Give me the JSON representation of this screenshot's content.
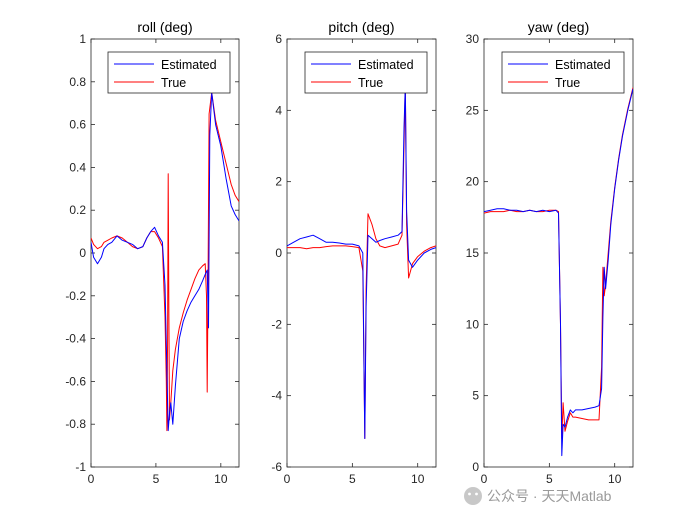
{
  "colors": {
    "estimated": "#0000ff",
    "true": "#ff0000",
    "axes": "#262626",
    "background": "#ffffff"
  },
  "legend": {
    "estimated": "Estimated",
    "true": "True",
    "position": "top-right"
  },
  "watermark": {
    "icon": "wechat-icon",
    "text": "公众号 · 天天Matlab"
  },
  "chart_data": [
    {
      "type": "line",
      "title": "roll (deg)",
      "xlim": [
        0,
        11.4
      ],
      "ylim": [
        -1,
        1
      ],
      "xticks": [
        0,
        5,
        10
      ],
      "yticks": [
        -1,
        -0.8,
        -0.6,
        -0.4,
        -0.2,
        0,
        0.2,
        0.4,
        0.6,
        0.8,
        1
      ],
      "ytick_labels": [
        "-1",
        "-0.8",
        "-0.6",
        "-0.4",
        "-0.2",
        "0",
        "0.2",
        "0.4",
        "0.6",
        "0.8",
        "1"
      ],
      "series": [
        {
          "name": "Estimated",
          "x": [
            0,
            0.2,
            0.5,
            0.8,
            1.0,
            1.3,
            1.6,
            2.0,
            2.4,
            2.8,
            3.2,
            3.6,
            4.0,
            4.3,
            4.6,
            4.9,
            5.2,
            5.5,
            5.7,
            5.85,
            5.95,
            6.05,
            6.15,
            6.3,
            6.5,
            6.8,
            7.1,
            7.4,
            7.7,
            8.0,
            8.3,
            8.6,
            8.8,
            8.95,
            9.05,
            9.15,
            9.3,
            9.6,
            10.0,
            10.4,
            10.8,
            11.1,
            11.4
          ],
          "y": [
            0.05,
            -0.02,
            -0.05,
            -0.02,
            0.02,
            0.04,
            0.05,
            0.08,
            0.06,
            0.05,
            0.04,
            0.02,
            0.03,
            0.07,
            0.1,
            0.12,
            0.08,
            0.05,
            -0.15,
            -0.55,
            -0.83,
            -0.75,
            -0.7,
            -0.8,
            -0.62,
            -0.4,
            -0.32,
            -0.27,
            -0.23,
            -0.2,
            -0.17,
            -0.13,
            -0.1,
            -0.08,
            -0.35,
            0.55,
            0.75,
            0.6,
            0.5,
            0.35,
            0.22,
            0.18,
            0.15
          ]
        },
        {
          "name": "True",
          "x": [
            0,
            0.2,
            0.5,
            0.8,
            1.0,
            1.3,
            1.6,
            2.0,
            2.4,
            2.8,
            3.2,
            3.6,
            4.0,
            4.3,
            4.6,
            4.9,
            5.2,
            5.5,
            5.7,
            5.8,
            5.85,
            5.9,
            5.95,
            6.0,
            6.05,
            6.15,
            6.3,
            6.5,
            6.8,
            7.1,
            7.4,
            7.7,
            8.0,
            8.3,
            8.6,
            8.8,
            8.9,
            8.95,
            9.0,
            9.1,
            9.3,
            9.6,
            10.0,
            10.4,
            10.8,
            11.1,
            11.4
          ],
          "y": [
            0.07,
            0.04,
            0.02,
            0.03,
            0.05,
            0.06,
            0.07,
            0.08,
            0.07,
            0.05,
            0.03,
            0.02,
            0.03,
            0.07,
            0.1,
            0.1,
            0.07,
            0.03,
            -0.3,
            -0.6,
            -0.83,
            -0.4,
            0.37,
            -0.3,
            -0.78,
            -0.7,
            -0.55,
            -0.45,
            -0.35,
            -0.28,
            -0.22,
            -0.17,
            -0.12,
            -0.08,
            -0.06,
            -0.05,
            -0.2,
            -0.65,
            -0.3,
            0.65,
            0.75,
            0.62,
            0.52,
            0.42,
            0.32,
            0.27,
            0.24
          ]
        }
      ]
    },
    {
      "type": "line",
      "title": "pitch (deg)",
      "xlim": [
        0,
        11.4
      ],
      "ylim": [
        -6,
        6
      ],
      "xticks": [
        0,
        5,
        10
      ],
      "yticks": [
        -6,
        -4,
        -2,
        0,
        2,
        4,
        6
      ],
      "ytick_labels": [
        "-6",
        "-4",
        "-2",
        "0",
        "2",
        "4",
        "6"
      ],
      "series": [
        {
          "name": "Estimated",
          "x": [
            0,
            0.5,
            1.0,
            1.5,
            2.0,
            2.5,
            3.0,
            3.5,
            4.0,
            4.5,
            5.0,
            5.5,
            5.8,
            5.9,
            5.95,
            6.05,
            6.2,
            6.5,
            6.8,
            7.1,
            7.5,
            8.0,
            8.5,
            8.8,
            8.95,
            9.05,
            9.15,
            9.3,
            9.6,
            10.0,
            10.5,
            11.0,
            11.4
          ],
          "y": [
            0.2,
            0.3,
            0.4,
            0.45,
            0.5,
            0.4,
            0.3,
            0.3,
            0.28,
            0.25,
            0.25,
            0.2,
            0.0,
            -3.5,
            -5.2,
            -1.5,
            0.5,
            0.4,
            0.3,
            0.35,
            0.4,
            0.45,
            0.5,
            0.6,
            3.5,
            4.7,
            1.2,
            -0.2,
            -0.4,
            -0.2,
            0.0,
            0.1,
            0.15
          ]
        },
        {
          "name": "True",
          "x": [
            0,
            0.5,
            1.0,
            1.5,
            2.0,
            2.5,
            3.0,
            3.5,
            4.0,
            4.5,
            5.0,
            5.5,
            5.8,
            5.9,
            5.95,
            6.05,
            6.2,
            6.5,
            6.8,
            7.1,
            7.5,
            8.0,
            8.5,
            8.8,
            8.95,
            9.05,
            9.15,
            9.3,
            9.6,
            10.0,
            10.5,
            11.0,
            11.4
          ],
          "y": [
            0.15,
            0.15,
            0.15,
            0.12,
            0.15,
            0.15,
            0.18,
            0.2,
            0.2,
            0.2,
            0.18,
            0.15,
            -0.5,
            -3.5,
            -5.2,
            -1.0,
            1.1,
            0.8,
            0.4,
            0.2,
            0.15,
            0.2,
            0.25,
            0.5,
            3.0,
            4.8,
            0.8,
            -0.7,
            -0.3,
            -0.1,
            0.05,
            0.15,
            0.2
          ]
        }
      ]
    },
    {
      "type": "line",
      "title": "yaw (deg)",
      "xlim": [
        0,
        11.4
      ],
      "ylim": [
        0,
        30
      ],
      "xticks": [
        0,
        5,
        10
      ],
      "yticks": [
        0,
        5,
        10,
        15,
        20,
        25,
        30
      ],
      "ytick_labels": [
        "0",
        "5",
        "10",
        "15",
        "20",
        "25",
        "30"
      ],
      "series": [
        {
          "name": "Estimated",
          "x": [
            0,
            0.5,
            1.0,
            1.5,
            2.0,
            2.5,
            3.0,
            3.5,
            4.0,
            4.5,
            5.0,
            5.5,
            5.7,
            5.85,
            5.95,
            6.05,
            6.2,
            6.4,
            6.6,
            6.8,
            7.0,
            7.5,
            8.0,
            8.5,
            8.8,
            9.0,
            9.1,
            9.2,
            9.3,
            9.5,
            9.7,
            10.0,
            10.3,
            10.6,
            11.0,
            11.4
          ],
          "y": [
            17.9,
            18.0,
            18.1,
            18.1,
            18.0,
            18.0,
            17.9,
            18.0,
            17.9,
            18.0,
            17.9,
            18.0,
            17.8,
            10.0,
            0.8,
            3.0,
            2.8,
            3.5,
            4.0,
            3.8,
            4.0,
            4.0,
            4.1,
            4.2,
            4.3,
            5.5,
            10.5,
            14.0,
            12.5,
            14.5,
            17.0,
            19.5,
            21.5,
            23.2,
            25.0,
            26.5
          ]
        },
        {
          "name": "True",
          "x": [
            0,
            0.5,
            1.0,
            1.5,
            2.0,
            2.5,
            3.0,
            3.5,
            4.0,
            4.5,
            5.0,
            5.5,
            5.7,
            5.85,
            5.95,
            6.05,
            6.2,
            6.4,
            6.6,
            6.8,
            7.0,
            7.5,
            8.0,
            8.5,
            8.8,
            9.0,
            9.1,
            9.2,
            9.3,
            9.5,
            9.7,
            10.0,
            10.3,
            10.6,
            11.0,
            11.4
          ],
          "y": [
            17.8,
            17.9,
            17.9,
            17.9,
            18.0,
            17.9,
            17.9,
            18.0,
            17.9,
            17.9,
            18.0,
            18.0,
            17.9,
            10.0,
            2.0,
            4.5,
            2.5,
            3.2,
            3.8,
            3.5,
            3.5,
            3.4,
            3.3,
            3.3,
            3.3,
            7.0,
            14.0,
            12.0,
            12.8,
            15.0,
            17.2,
            19.6,
            21.6,
            23.3,
            25.1,
            26.6
          ]
        }
      ]
    }
  ]
}
